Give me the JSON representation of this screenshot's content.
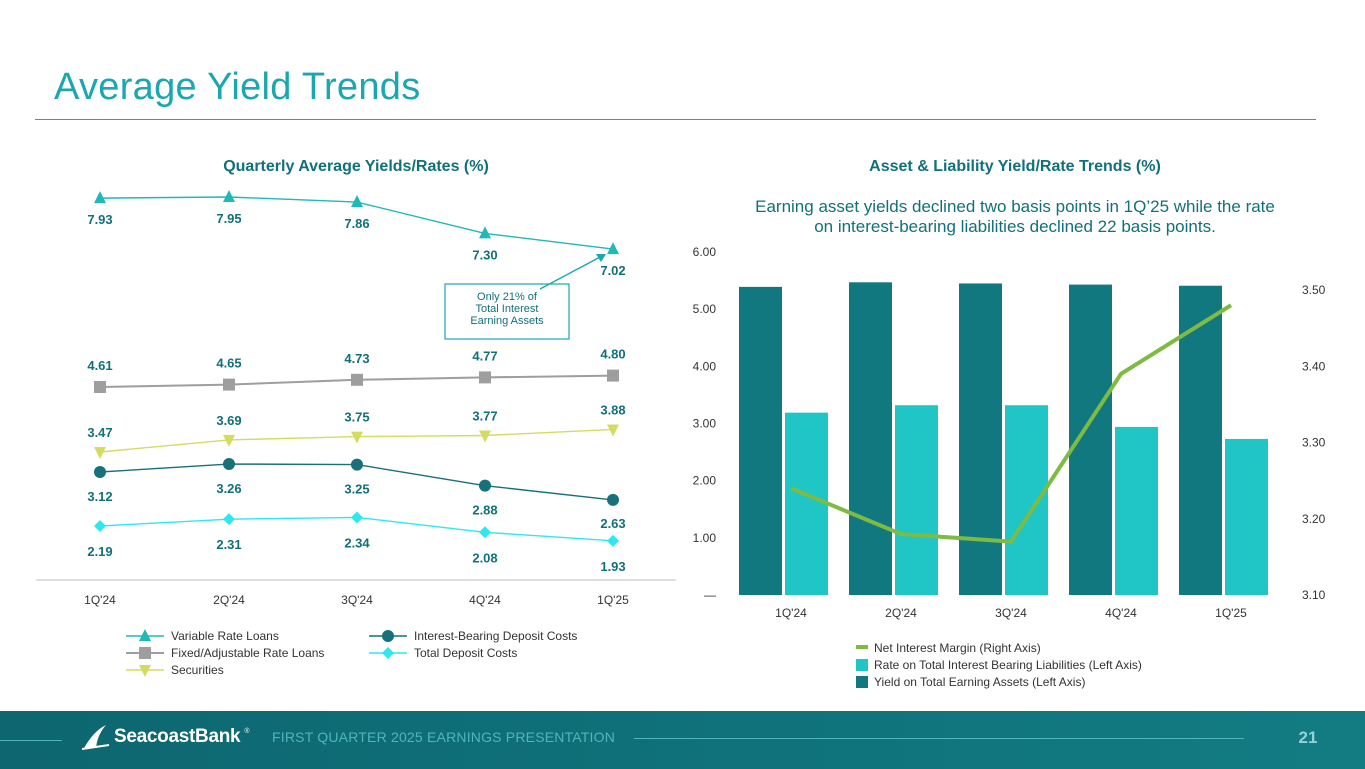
{
  "page": {
    "title": "Average Yield Trends",
    "footer_tagline": "FIRST QUARTER 2025 EARNINGS PRESENTATION",
    "page_number": "21",
    "logo_text": "SeacoastBank",
    "logo_mark": "®"
  },
  "colors": {
    "teal_title": "#1aa7b0",
    "dark_teal": "#11707a",
    "variable_rate_loans": "#21b8b8",
    "fixed_adjustable": "#9e9e9e",
    "securities": "#d4dc60",
    "ib_deposit_costs": "#17707a",
    "total_deposit_costs": "#2ee8f0",
    "yield_earning_assets": "#127880",
    "rate_ib_liabilities": "#20c6c6",
    "nim": "#7dbb42"
  },
  "chart_data": [
    {
      "type": "line",
      "title": "Quarterly Average Yields/Rates (%)",
      "categories": [
        "1Q'24",
        "2Q'24",
        "3Q'24",
        "4Q'24",
        "1Q'25"
      ],
      "series": [
        {
          "name": "Variable Rate Loans",
          "marker": "triangle-up",
          "color": "#21b8b8",
          "values": [
            7.93,
            7.95,
            7.86,
            7.3,
            7.02
          ]
        },
        {
          "name": "Fixed/Adjustable Rate Loans",
          "marker": "square",
          "color": "#9e9e9e",
          "values": [
            4.61,
            4.65,
            4.73,
            4.77,
            4.8
          ]
        },
        {
          "name": "Securities",
          "marker": "triangle-down",
          "color": "#d4dc60",
          "values": [
            3.47,
            3.69,
            3.75,
            3.77,
            3.88
          ]
        },
        {
          "name": "Interest-Bearing Deposit Costs",
          "marker": "circle",
          "color": "#17707a",
          "values": [
            3.12,
            3.26,
            3.25,
            2.88,
            2.63
          ]
        },
        {
          "name": "Total Deposit Costs",
          "marker": "diamond",
          "color": "#2ee8f0",
          "values": [
            2.19,
            2.31,
            2.34,
            2.08,
            1.93
          ]
        }
      ],
      "data_labels": [
        [
          "7.93",
          "7.95",
          "7.86",
          "7.30",
          "7.02"
        ],
        [
          "4.61",
          "4.65",
          "4.73",
          "4.77",
          "4.80"
        ],
        [
          "3.47",
          "3.69",
          "3.75",
          "3.77",
          "3.88"
        ],
        [
          "3.12",
          "3.26",
          "3.25",
          "2.88",
          "2.63"
        ],
        [
          "2.19",
          "2.31",
          "2.34",
          "2.08",
          "1.93"
        ]
      ],
      "annotation": {
        "text": [
          "Only 21% of",
          "Total Interest",
          "Earning Assets"
        ],
        "points_to": "Variable Rate Loans 1Q'25"
      },
      "legend": "bottom"
    },
    {
      "type": "bar",
      "title": "Asset & Liability Yield/Rate Trends (%)",
      "subtitle": [
        "Earning asset yields declined two basis points in 1Q’25 while the rate",
        "on interest-bearing liabilities declined 22 basis points."
      ],
      "categories": [
        "1Q'24",
        "2Q'24",
        "3Q'24",
        "4Q'24",
        "1Q'25"
      ],
      "series": [
        {
          "name": "Yield on Total Earning Assets (Left Axis)",
          "type": "bar",
          "color": "#127880",
          "values": [
            5.39,
            5.47,
            5.45,
            5.43,
            5.41
          ]
        },
        {
          "name": "Rate on Total Interest Bearing Liabilities (Left Axis)",
          "type": "bar",
          "color": "#20c6c6",
          "values": [
            3.19,
            3.32,
            3.32,
            2.94,
            2.73
          ]
        },
        {
          "name": "Net Interest Margin (Right Axis)",
          "type": "line",
          "axis": "right",
          "color": "#7dbb42",
          "values": [
            3.24,
            3.18,
            3.17,
            3.39,
            3.48
          ]
        }
      ],
      "left_axis": {
        "ylim": [
          0,
          6
        ],
        "ticks": [
          "—",
          "1.00",
          "2.00",
          "3.00",
          "4.00",
          "5.00",
          "6.00"
        ]
      },
      "right_axis": {
        "ylim": [
          3.1,
          3.5
        ],
        "ticks": [
          "3.10",
          "3.20",
          "3.30",
          "3.40",
          "3.50"
        ]
      },
      "legend": "bottom"
    }
  ]
}
